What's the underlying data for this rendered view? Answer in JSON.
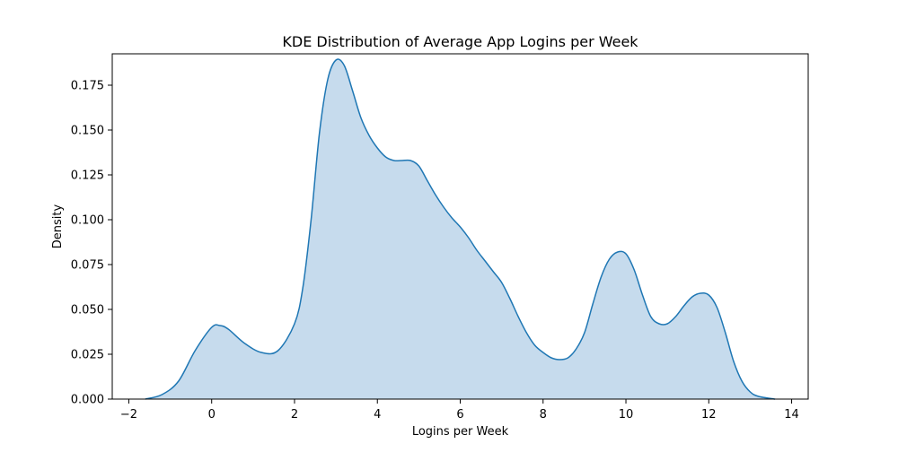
{
  "chart_data": {
    "type": "area",
    "title": "KDE Distribution of Average App Logins per Week",
    "xlabel": "Logins per Week",
    "ylabel": "Density",
    "xlim": [
      -2.4,
      14.4
    ],
    "ylim": [
      0,
      0.1925
    ],
    "xticks": [
      -2,
      0,
      2,
      4,
      6,
      8,
      10,
      12,
      14
    ],
    "xtick_labels": [
      "−2",
      "0",
      "2",
      "4",
      "6",
      "8",
      "10",
      "12",
      "14"
    ],
    "yticks": [
      0,
      0.025,
      0.05,
      0.075,
      0.1,
      0.125,
      0.15,
      0.175
    ],
    "ytick_labels": [
      "0.000",
      "0.025",
      "0.050",
      "0.075",
      "0.100",
      "0.125",
      "0.150",
      "0.175"
    ],
    "grid": false,
    "legend": "none",
    "series": [
      {
        "x": [
          -1.6,
          -1.2,
          -0.8,
          -0.4,
          0.0,
          0.2,
          0.4,
          0.8,
          1.2,
          1.6,
          2.0,
          2.2,
          2.4,
          2.6,
          2.8,
          3.0,
          3.2,
          3.4,
          3.6,
          3.8,
          4.0,
          4.2,
          4.4,
          4.6,
          4.8,
          5.0,
          5.2,
          5.4,
          5.6,
          5.8,
          6.0,
          6.2,
          6.4,
          6.6,
          6.8,
          7.0,
          7.2,
          7.4,
          7.6,
          7.8,
          8.0,
          8.2,
          8.4,
          8.6,
          8.8,
          9.0,
          9.2,
          9.4,
          9.6,
          9.8,
          10.0,
          10.2,
          10.4,
          10.6,
          10.8,
          11.0,
          11.2,
          11.4,
          11.6,
          11.8,
          12.0,
          12.2,
          12.4,
          12.6,
          12.8,
          13.0,
          13.2,
          13.6
        ],
        "y": [
          0.0,
          0.0025,
          0.01,
          0.027,
          0.04,
          0.041,
          0.039,
          0.031,
          0.026,
          0.027,
          0.042,
          0.062,
          0.1,
          0.148,
          0.178,
          0.189,
          0.186,
          0.172,
          0.157,
          0.147,
          0.14,
          0.135,
          0.133,
          0.133,
          0.133,
          0.13,
          0.122,
          0.114,
          0.107,
          0.101,
          0.096,
          0.09,
          0.083,
          0.077,
          0.071,
          0.065,
          0.056,
          0.046,
          0.037,
          0.03,
          0.026,
          0.023,
          0.022,
          0.023,
          0.028,
          0.037,
          0.053,
          0.068,
          0.078,
          0.082,
          0.081,
          0.072,
          0.058,
          0.046,
          0.042,
          0.042,
          0.046,
          0.052,
          0.057,
          0.059,
          0.058,
          0.051,
          0.037,
          0.021,
          0.01,
          0.004,
          0.0015,
          0.0
        ]
      }
    ],
    "colors": {
      "line": "#1f77b4",
      "fill": "#c6dbed",
      "axes": "#000000"
    }
  }
}
